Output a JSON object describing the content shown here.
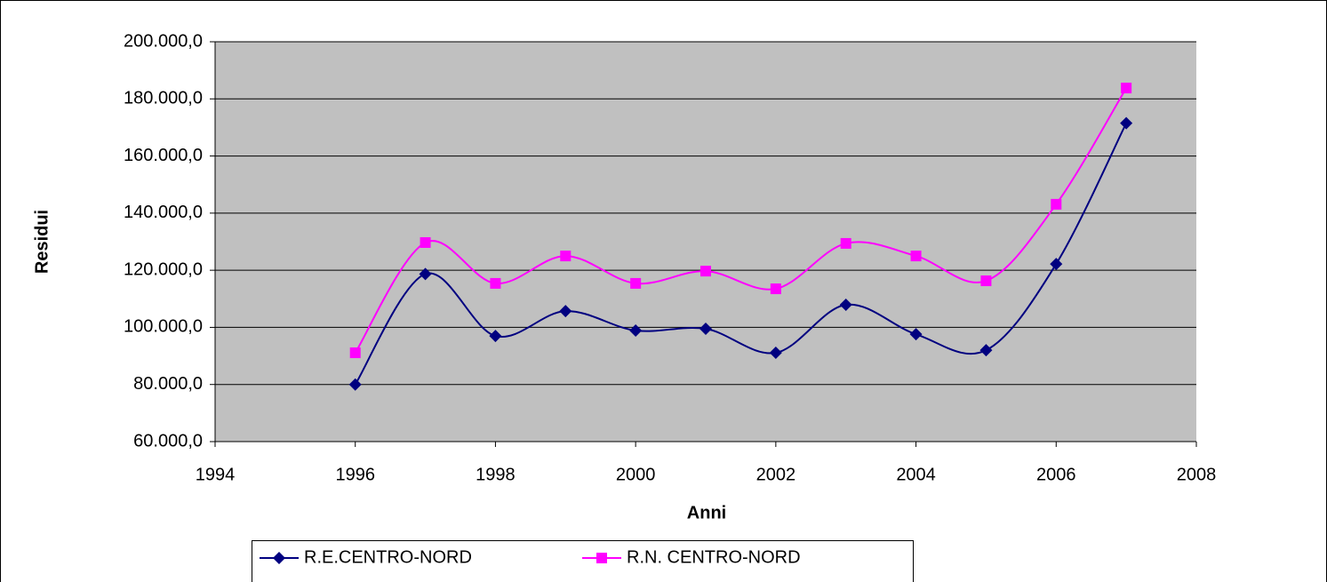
{
  "chart_data": {
    "type": "line",
    "x_label": "Anni",
    "y_label": "Residui",
    "xlim": [
      1994,
      2008
    ],
    "xticks": [
      1994,
      1996,
      1998,
      2000,
      2002,
      2004,
      2006,
      2008
    ],
    "ylim": [
      60000,
      200000
    ],
    "yticks": [
      {
        "value": 60000,
        "label": "60.000,0"
      },
      {
        "value": 80000,
        "label": "80.000,0"
      },
      {
        "value": 100000,
        "label": "100.000,0"
      },
      {
        "value": 120000,
        "label": "120.000,0"
      },
      {
        "value": 140000,
        "label": "140.000,0"
      },
      {
        "value": 160000,
        "label": "160.000,0"
      },
      {
        "value": 180000,
        "label": "180.000,0"
      },
      {
        "value": 200000,
        "label": "200.000,0"
      }
    ],
    "grid": true,
    "smooth": true,
    "legend": "bottom",
    "x": [
      1996,
      1997,
      1998,
      1999,
      2000,
      2001,
      2002,
      2003,
      2004,
      2005,
      2006,
      2007
    ],
    "series": [
      {
        "name": "R.E.CENTRO-NORD",
        "color": "#000080",
        "marker": "diamond",
        "values": [
          80000,
          118700,
          97000,
          105700,
          98900,
          99500,
          91100,
          107900,
          97600,
          92000,
          122200,
          171500
        ]
      },
      {
        "name": "R.N. CENTRO-NORD",
        "color": "#ff00ff",
        "marker": "square",
        "values": [
          91100,
          129700,
          115400,
          125000,
          115400,
          119700,
          113500,
          129400,
          125000,
          116300,
          143100,
          183800
        ]
      }
    ]
  }
}
